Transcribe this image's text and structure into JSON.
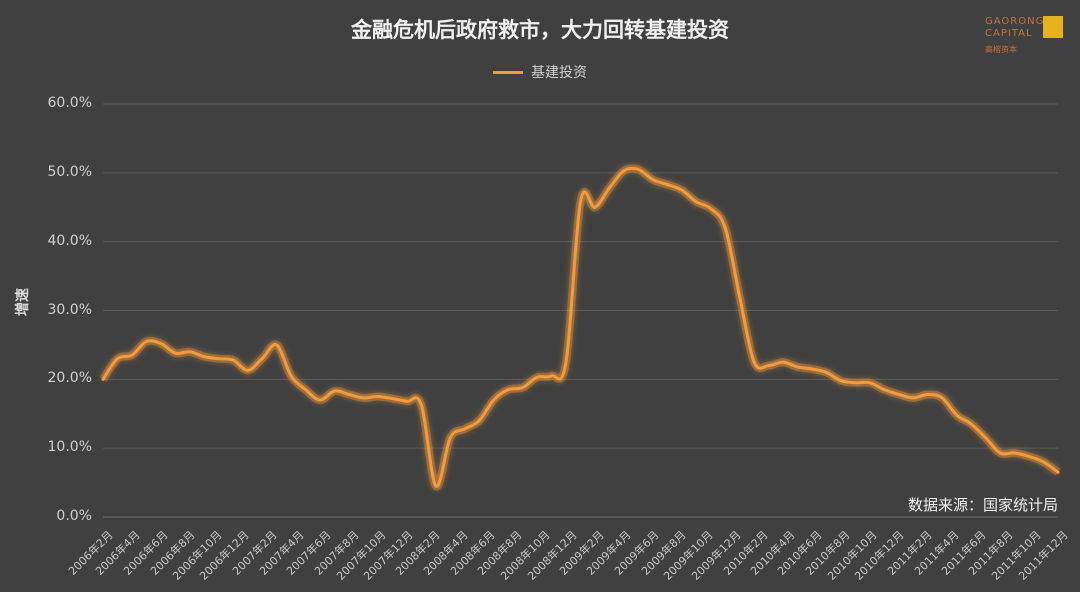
{
  "header": {
    "title": "金融危机后政府救市，大力回转基建投资",
    "logo_en_line1": "GAORONG",
    "logo_en_line2": "CAPITAL",
    "logo_cn": "高榕资本"
  },
  "footer": {
    "source": "数据来源：国家统计局"
  },
  "colors": {
    "background": "#404040",
    "line": "#f39a3c",
    "grid": "#5a5a5a"
  },
  "chart_data": {
    "type": "line",
    "ylabel": "增速",
    "ylim": [
      0,
      60
    ],
    "yticks": [
      "0.0%",
      "10.0%",
      "20.0%",
      "30.0%",
      "40.0%",
      "50.0%",
      "60.0%"
    ],
    "grid": true,
    "legend_position": "top-center",
    "x_tick_labels": [
      "2006年2月",
      "2006年4月",
      "2006年6月",
      "2006年8月",
      "2006年10月",
      "2006年12月",
      "2007年2月",
      "2007年4月",
      "2007年6月",
      "2007年8月",
      "2007年10月",
      "2007年12月",
      "2008年2月",
      "2008年4月",
      "2008年6月",
      "2008年8月",
      "2008年10月",
      "2008年12月",
      "2009年2月",
      "2009年4月",
      "2009年6月",
      "2009年8月",
      "2009年10月",
      "2009年12月",
      "2010年2月",
      "2010年4月",
      "2010年6月",
      "2010年8月",
      "2010年10月",
      "2010年12月",
      "2011年2月",
      "2011年4月",
      "2011年6月",
      "2011年8月",
      "2011年10月",
      "2011年12月"
    ],
    "series": [
      {
        "name": "基建投资",
        "values": [
          20.0,
          23.0,
          23.5,
          25.5,
          25.2,
          23.8,
          24.0,
          23.3,
          23.0,
          22.8,
          21.3,
          23.0,
          25.0,
          20.5,
          18.5,
          17.0,
          18.3,
          17.8,
          17.3,
          17.5,
          17.2,
          16.8,
          16.3,
          4.5,
          11.5,
          12.8,
          14.0,
          17.0,
          18.5,
          18.8,
          20.3,
          20.5,
          22.5,
          45.8,
          45.0,
          47.8,
          50.3,
          50.5,
          49.0,
          48.3,
          47.5,
          45.8,
          44.8,
          42.0,
          32.0,
          22.5,
          22.0,
          22.5,
          21.8,
          21.5,
          21.0,
          19.8,
          19.5,
          19.5,
          18.5,
          17.8,
          17.3,
          17.8,
          17.3,
          14.8,
          13.5,
          11.5,
          9.3,
          9.3,
          8.8,
          8.0,
          6.5
        ]
      }
    ]
  }
}
